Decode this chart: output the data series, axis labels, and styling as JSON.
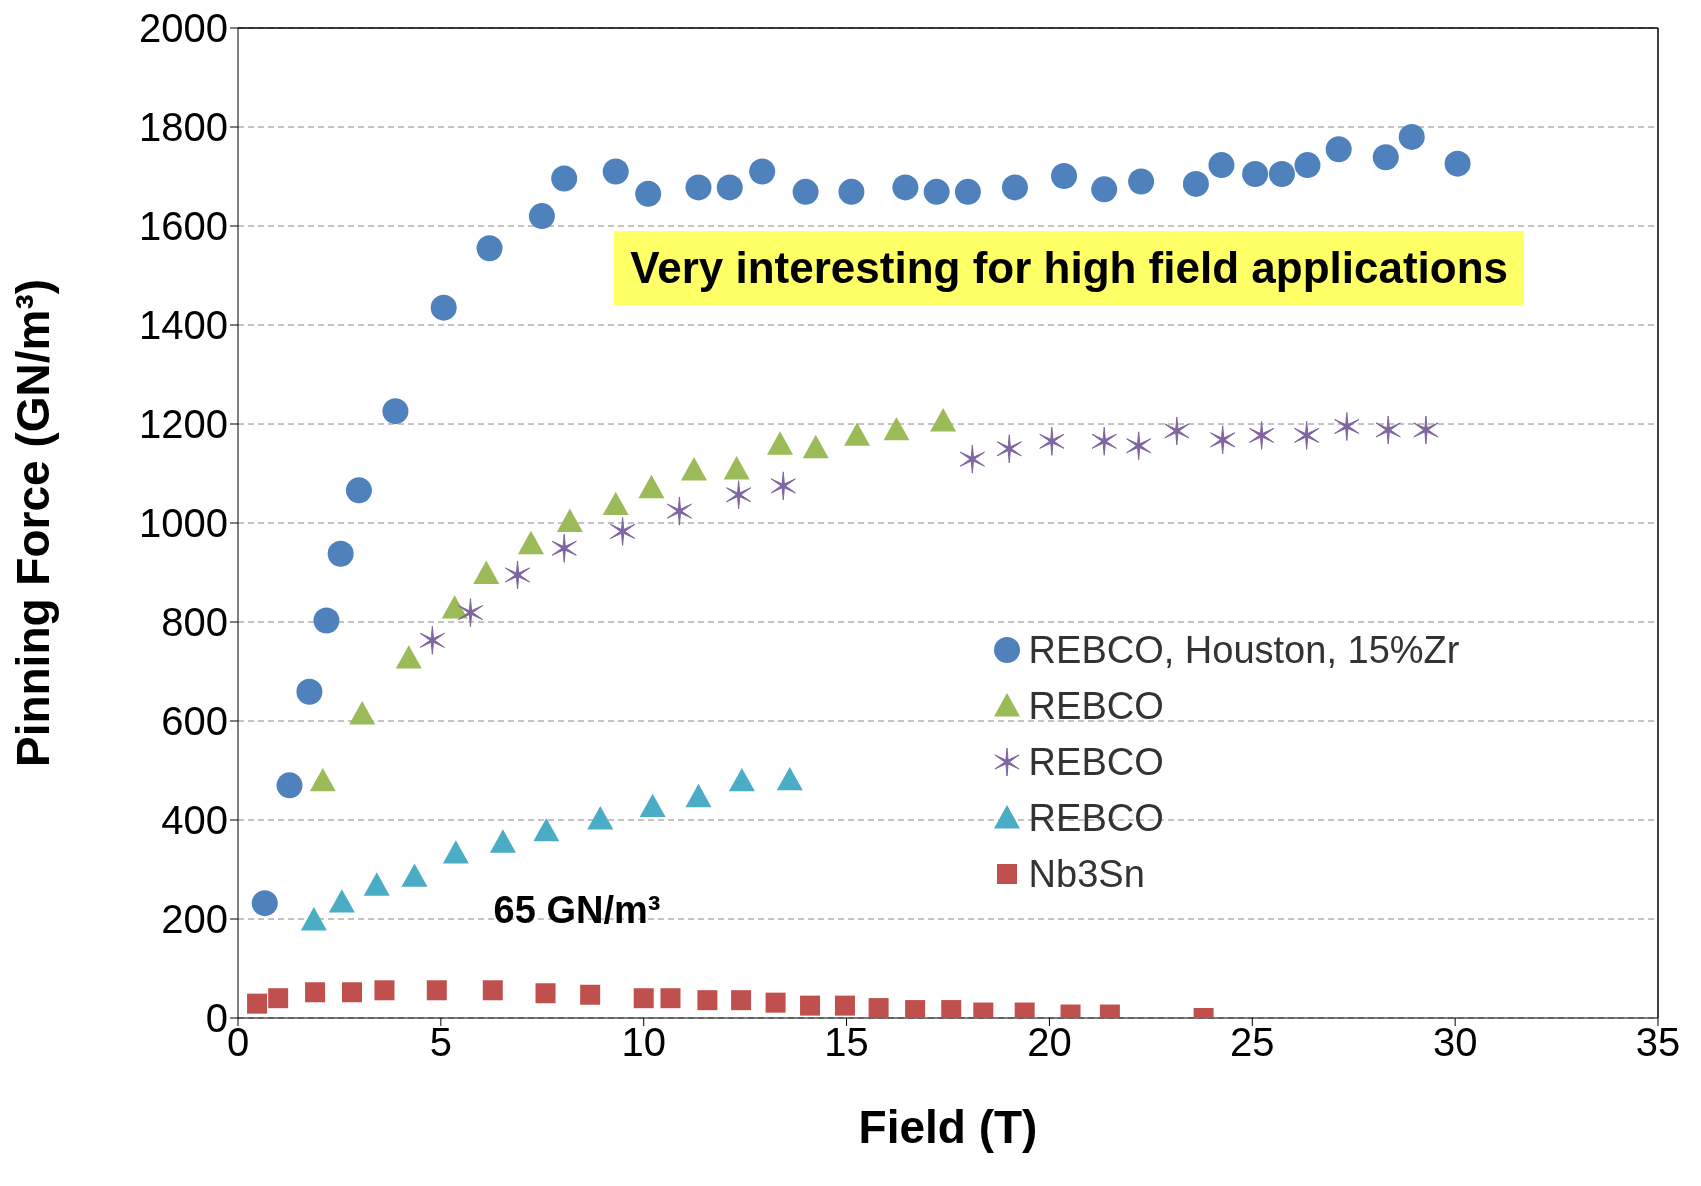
{
  "chart_data": {
    "type": "scatter",
    "xlabel": "Field (T)",
    "ylabel": "Pinning Force (GN/m³)",
    "xlim": [
      0,
      35
    ],
    "xticks": [
      0,
      5,
      10,
      15,
      20,
      25,
      30,
      35
    ],
    "ylim": [
      0,
      2000
    ],
    "yticks": [
      0,
      200,
      400,
      600,
      800,
      1000,
      1200,
      1400,
      1600,
      1800,
      2000
    ],
    "grid": "y",
    "legend": "right",
    "annotations": [
      "65 GN/m³",
      "Very interesting for high field applications"
    ],
    "series": [
      {
        "name": "REBCO, Houston, 15%Zr",
        "color": "#4f81bd",
        "marker": "circle",
        "x": [
          0.66,
          1.27,
          1.76,
          2.18,
          2.53,
          2.98,
          3.88,
          5.07,
          6.2,
          7.49,
          8.04,
          9.31,
          10.11,
          11.35,
          12.12,
          12.92,
          13.99,
          15.12,
          16.45,
          17.22,
          17.99,
          19.15,
          20.36,
          21.35,
          22.26,
          23.61,
          24.24,
          25.07,
          25.73,
          26.36,
          27.13,
          28.29,
          28.93,
          30.06
        ],
        "values": [
          232,
          470,
          659,
          803,
          938,
          1066,
          1226,
          1435,
          1555,
          1620,
          1696,
          1710,
          1665,
          1678,
          1678,
          1710,
          1669,
          1669,
          1678,
          1669,
          1669,
          1678,
          1701,
          1674,
          1690,
          1685,
          1723,
          1705,
          1705,
          1723,
          1755,
          1739,
          1780,
          1726
        ]
      },
      {
        "name": "REBCO",
        "color": "#9bbb59",
        "marker": "triangle",
        "x": [
          2.09,
          3.06,
          4.21,
          5.34,
          6.12,
          7.22,
          8.18,
          9.31,
          10.19,
          11.24,
          12.29,
          13.36,
          14.24,
          15.26,
          16.23,
          17.38
        ],
        "values": [
          479,
          614,
          727,
          828,
          898,
          958,
          1003,
          1037,
          1071,
          1107,
          1109,
          1159,
          1152,
          1177,
          1188,
          1206
        ]
      },
      {
        "name": "REBCO",
        "color": "#8064a2",
        "marker": "cross",
        "x": [
          4.79,
          5.73,
          6.89,
          8.04,
          9.48,
          10.88,
          12.34,
          13.44,
          18.1,
          19.01,
          20.06,
          21.35,
          22.2,
          23.14,
          24.27,
          25.23,
          26.34,
          27.33,
          28.35,
          29.28
        ],
        "values": [
          763,
          819,
          895,
          949,
          983,
          1024,
          1057,
          1075,
          1129,
          1150,
          1165,
          1165,
          1156,
          1186,
          1168,
          1177,
          1177,
          1195,
          1188,
          1188
        ]
      },
      {
        "name": "REBCO",
        "color": "#4bacc6",
        "marker": "triangle",
        "x": [
          1.87,
          2.56,
          3.42,
          4.35,
          5.37,
          6.53,
          7.6,
          8.93,
          10.22,
          11.35,
          12.42,
          13.6
        ],
        "values": [
          198,
          234,
          268,
          286,
          333,
          355,
          378,
          402,
          427,
          447,
          479,
          481
        ]
      },
      {
        "name": "Nb3Sn",
        "color": "#c0504d",
        "marker": "square",
        "x": [
          0.47,
          0.99,
          1.9,
          2.81,
          3.61,
          4.9,
          6.28,
          7.58,
          8.68,
          10.0,
          10.66,
          11.57,
          12.4,
          13.25,
          14.1,
          14.96,
          15.79,
          16.69,
          17.58,
          18.37,
          19.39,
          20.52,
          21.49,
          23.8
        ],
        "values": [
          29,
          40,
          52,
          52,
          56,
          56,
          56,
          50,
          47,
          40,
          40,
          36,
          36,
          31,
          25,
          25,
          20,
          16,
          16,
          11,
          11,
          7,
          7,
          0
        ]
      }
    ]
  }
}
